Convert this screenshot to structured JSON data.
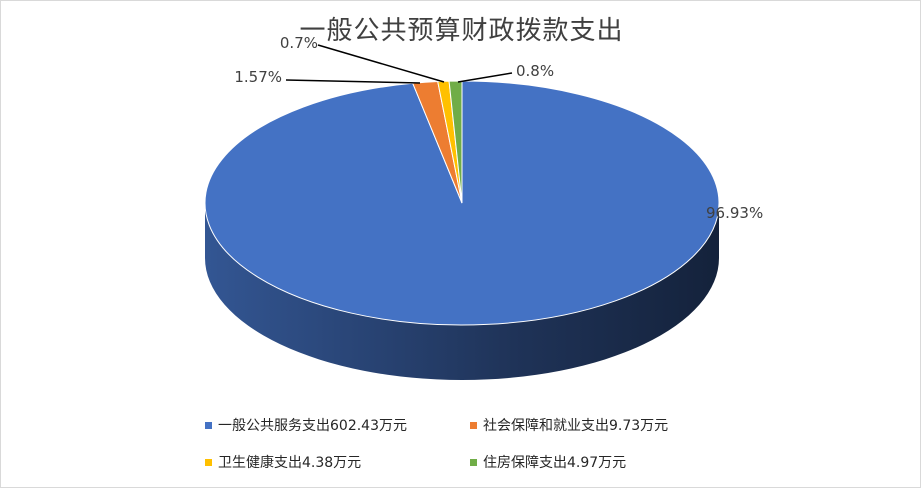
{
  "chart_data": {
    "type": "pie",
    "title": "一般公共预算财政拨款支出",
    "unit": "万元",
    "slices": [
      {
        "name": "一般公共服务支出",
        "value": 602.43,
        "value_label": "602.43万元",
        "percent_label": "96.93%",
        "color": "#4472c4"
      },
      {
        "name": "社会保障和就业支出",
        "value": 9.73,
        "value_label": "9.73万元",
        "percent_label": "1.57%",
        "color": "#ed7d31"
      },
      {
        "name": "卫生健康支出",
        "value": 4.38,
        "value_label": "4.38万元",
        "percent_label": "0.7%",
        "color": "#ffc000"
      },
      {
        "name": "住房保障支出",
        "value": 4.97,
        "value_label": "4.97万元",
        "percent_label": "0.8%",
        "color": "#70ad47"
      }
    ],
    "legend_position": "bottom",
    "style": "3d"
  }
}
